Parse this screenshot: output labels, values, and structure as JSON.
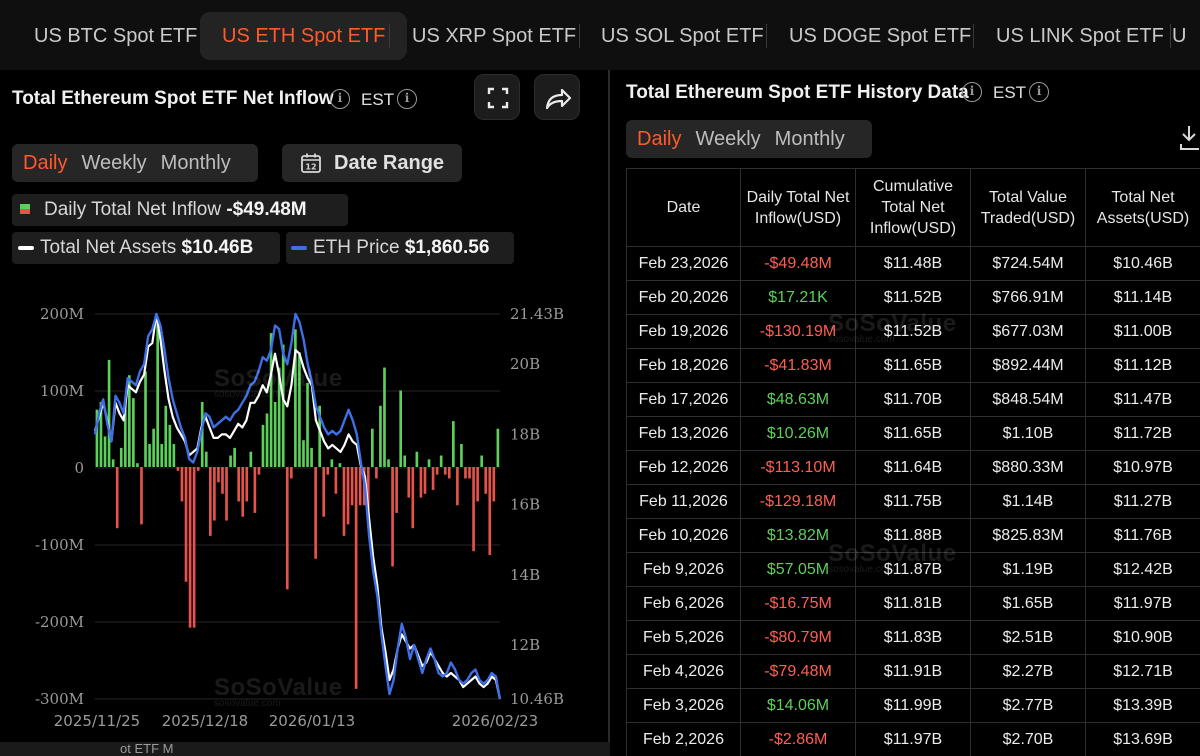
{
  "tabs": [
    {
      "label": "US BTC Spot ETF",
      "active": false
    },
    {
      "label": "US ETH Spot ETF",
      "active": true
    },
    {
      "label": "US XRP Spot ETF",
      "active": false
    },
    {
      "label": "US SOL Spot ETF",
      "active": false
    },
    {
      "label": "US DOGE Spot ETF",
      "active": false
    },
    {
      "label": "US LINK Spot ETF",
      "active": false
    }
  ],
  "left": {
    "title": "Total Ethereum Spot ETF Net Inflow",
    "timezone": "EST",
    "periods": [
      "Daily",
      "Weekly",
      "Monthly"
    ],
    "active_period": "Daily",
    "date_range_label": "Date Range",
    "calendar_day": "12",
    "legend": {
      "inflow_label": "Daily Total Net Inflow",
      "inflow_value": "-$49.48M",
      "assets_label": "Total Net Assets",
      "assets_value": "$10.46B",
      "price_label": "ETH Price",
      "price_value": "$1,860.56"
    }
  },
  "right": {
    "title": "Total Ethereum Spot ETF History Data",
    "timezone": "EST",
    "periods": [
      "Daily",
      "Weekly",
      "Monthly"
    ],
    "active_period": "Daily",
    "columns": [
      "Date",
      "Daily Total Net Inflow(USD)",
      "Cumulative Total Net Inflow(USD)",
      "Total Value Traded(USD)",
      "Total Net Assets(USD)"
    ],
    "rows": [
      {
        "date": "Feb 23,2026",
        "daily": "-$49.48M",
        "cum": "$11.48B",
        "traded": "$724.54M",
        "assets": "$10.46B"
      },
      {
        "date": "Feb 20,2026",
        "daily": "$17.21K",
        "cum": "$11.52B",
        "traded": "$766.91M",
        "assets": "$11.14B"
      },
      {
        "date": "Feb 19,2026",
        "daily": "-$130.19M",
        "cum": "$11.52B",
        "traded": "$677.03M",
        "assets": "$11.00B"
      },
      {
        "date": "Feb 18,2026",
        "daily": "-$41.83M",
        "cum": "$11.65B",
        "traded": "$892.44M",
        "assets": "$11.12B"
      },
      {
        "date": "Feb 17,2026",
        "daily": "$48.63M",
        "cum": "$11.70B",
        "traded": "$848.54M",
        "assets": "$11.47B"
      },
      {
        "date": "Feb 13,2026",
        "daily": "$10.26M",
        "cum": "$11.65B",
        "traded": "$1.10B",
        "assets": "$11.72B"
      },
      {
        "date": "Feb 12,2026",
        "daily": "-$113.10M",
        "cum": "$11.64B",
        "traded": "$880.33M",
        "assets": "$10.97B"
      },
      {
        "date": "Feb 11,2026",
        "daily": "-$129.18M",
        "cum": "$11.75B",
        "traded": "$1.14B",
        "assets": "$11.27B"
      },
      {
        "date": "Feb 10,2026",
        "daily": "$13.82M",
        "cum": "$11.88B",
        "traded": "$825.83M",
        "assets": "$11.76B"
      },
      {
        "date": "Feb 9,2026",
        "daily": "$57.05M",
        "cum": "$11.87B",
        "traded": "$1.19B",
        "assets": "$12.42B"
      },
      {
        "date": "Feb 6,2026",
        "daily": "-$16.75M",
        "cum": "$11.81B",
        "traded": "$1.65B",
        "assets": "$11.97B"
      },
      {
        "date": "Feb 5,2026",
        "daily": "-$80.79M",
        "cum": "$11.83B",
        "traded": "$2.51B",
        "assets": "$10.90B"
      },
      {
        "date": "Feb 4,2026",
        "daily": "-$79.48M",
        "cum": "$11.91B",
        "traded": "$2.27B",
        "assets": "$12.71B"
      },
      {
        "date": "Feb 3,2026",
        "daily": "$14.06M",
        "cum": "$11.99B",
        "traded": "$2.77B",
        "assets": "$13.39B"
      },
      {
        "date": "Feb 2,2026",
        "daily": "-$2.86M",
        "cum": "$11.97B",
        "traded": "$2.70B",
        "assets": "$13.69B"
      }
    ]
  },
  "watermark": {
    "name": "SoSoValue",
    "url": "sosovalue.com"
  },
  "bottom_text": "ot ETF  M",
  "colors": {
    "accent": "#ff5a2a",
    "inflow_positive": "#5bd05b",
    "inflow_negative": "#e5534b",
    "eth_price": "#3f6fe6",
    "net_assets": "#ffffff"
  },
  "chart_data": {
    "type": "bar",
    "title": "",
    "x_ticks": [
      "2025/11/25",
      "2025/12/18",
      "2026/01/13",
      "2026/02/23"
    ],
    "y_left": {
      "ticks": [
        "200M",
        "100M",
        "0",
        "-100M",
        "-200M",
        "-300M"
      ],
      "range": [
        -300,
        200
      ],
      "unit": "M USD"
    },
    "y_right": {
      "ticks": [
        "21.43B",
        "20B",
        "18B",
        "16B",
        "14B",
        "12B",
        "10.46B"
      ],
      "range": [
        10.46,
        21.43
      ],
      "unit": "B USD"
    },
    "series": [
      {
        "name": "Daily Total Net Inflow",
        "kind": "bar",
        "unit": "M",
        "values": [
          75,
          85,
          40,
          140,
          10,
          -80,
          25,
          85,
          120,
          90,
          5,
          -75,
          125,
          30,
          50,
          195,
          30,
          80,
          55,
          30,
          -5,
          -45,
          -150,
          -210,
          -210,
          -5,
          85,
          20,
          -90,
          -70,
          -20,
          -35,
          -70,
          15,
          25,
          -45,
          -65,
          -45,
          20,
          -60,
          -10,
          55,
          70,
          175,
          85,
          130,
          160,
          -160,
          -15,
          180,
          150,
          35,
          110,
          25,
          -120,
          80,
          -65,
          -10,
          10,
          -35,
          5,
          -90,
          -75,
          -50,
          -290,
          -50,
          -50,
          -70,
          50,
          -15,
          80,
          130,
          10,
          -130,
          -60,
          100,
          15,
          -40,
          -80,
          20,
          -40,
          -35,
          10,
          -30,
          -10,
          15,
          -10,
          -15,
          60,
          -50,
          30,
          -15,
          -15,
          -110,
          -45,
          15,
          -35,
          -115,
          -45,
          50
        ]
      },
      {
        "name": "Total Net Assets",
        "kind": "line",
        "unit": "B",
        "values": [
          18.1,
          18.5,
          18.9,
          18.4,
          17.8,
          18.9,
          18.6,
          18.4,
          19.4,
          19.3,
          19.2,
          19.5,
          19.7,
          20.5,
          20.6,
          21.43,
          20.7,
          19.8,
          19.0,
          18.5,
          18.2,
          18.0,
          17.8,
          17.4,
          17.5,
          17.6,
          18.2,
          18.5,
          18.2,
          17.9,
          17.9,
          18.0,
          18.0,
          17.9,
          18.1,
          18.3,
          18.2,
          18.4,
          18.9,
          18.9,
          19.1,
          19.4,
          19.2,
          19.7,
          20.3,
          19.7,
          19.0,
          18.8,
          19.4,
          20.4,
          20.3,
          19.9,
          19.6,
          19.4,
          18.4,
          18.1,
          17.8,
          17.6,
          17.7,
          17.6,
          17.5,
          17.7,
          18.0,
          17.8,
          17.7,
          17.1,
          16.8,
          15.6,
          14.5,
          13.7,
          12.5,
          11.8,
          11.0,
          11.3,
          11.9,
          12.3,
          12.1,
          11.9,
          12.0,
          11.7,
          11.4,
          11.5,
          11.8,
          11.6,
          11.4,
          11.2,
          11.1,
          11.2,
          11.1,
          11.0,
          10.8,
          10.9,
          11.0,
          11.1,
          10.9,
          10.8,
          10.9,
          11.1,
          11.0,
          10.46
        ]
      },
      {
        "name": "ETH Price",
        "kind": "line",
        "unit": "B-scale",
        "values": [
          18.0,
          18.6,
          19.0,
          18.3,
          17.8,
          19.1,
          18.9,
          18.6,
          19.6,
          19.5,
          19.4,
          19.8,
          20.0,
          20.8,
          21.0,
          21.43,
          21.1,
          20.4,
          19.6,
          19.0,
          18.6,
          18.2,
          17.9,
          17.3,
          17.2,
          17.5,
          18.1,
          18.6,
          18.5,
          18.2,
          18.3,
          18.4,
          18.5,
          18.4,
          18.6,
          18.7,
          18.9,
          19.1,
          19.4,
          19.5,
          19.8,
          20.2,
          20.1,
          20.4,
          21.1,
          21.0,
          20.3,
          20.0,
          20.6,
          21.43,
          21.2,
          20.7,
          20.0,
          19.5,
          18.8,
          18.5,
          18.2,
          18.0,
          18.1,
          18.0,
          18.1,
          18.4,
          18.7,
          18.4,
          18.0,
          17.2,
          16.5,
          15.1,
          14.1,
          13.4,
          12.3,
          11.4,
          10.6,
          11.0,
          11.9,
          12.6,
          12.2,
          11.6,
          12.0,
          11.6,
          11.2,
          11.6,
          11.9,
          11.6,
          11.2,
          11.1,
          11.2,
          11.5,
          11.3,
          11.0,
          10.9,
          11.0,
          11.2,
          11.3,
          11.0,
          10.9,
          11.0,
          11.2,
          11.1,
          10.46
        ]
      }
    ]
  }
}
